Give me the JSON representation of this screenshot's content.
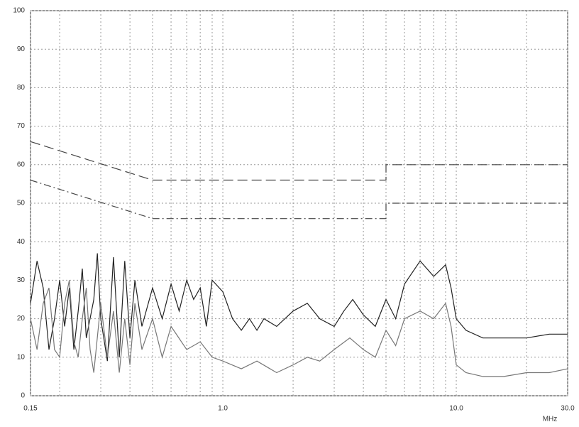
{
  "chart_data": {
    "type": "line",
    "x_label": "MHz",
    "xscale": "log",
    "grid": true,
    "xlim": [
      0.15,
      30
    ],
    "ylim": [
      0,
      100
    ],
    "xticks": [
      {
        "value": 0.15,
        "label": "0.15"
      },
      {
        "value": 1,
        "label": "1.0"
      },
      {
        "value": 10,
        "label": "10.0"
      },
      {
        "value": 30,
        "label": "30.0"
      }
    ],
    "xminorticks": [
      0.2,
      0.3,
      0.4,
      0.5,
      0.6,
      0.7,
      0.8,
      0.9,
      2,
      3,
      4,
      5,
      6,
      7,
      8,
      9,
      20
    ],
    "yticks": [
      0,
      10,
      20,
      30,
      40,
      50,
      60,
      70,
      80,
      90,
      100
    ],
    "series": [
      {
        "color": "#444444",
        "dash": "14 6",
        "x": [
          0.15,
          0.5,
          5,
          5,
          30
        ],
        "values": [
          66,
          56,
          56,
          60,
          60
        ]
      },
      {
        "color": "#444444",
        "dash": "10 4 2 4",
        "x": [
          0.15,
          0.5,
          5,
          5,
          30
        ],
        "values": [
          56,
          46,
          46,
          50,
          50
        ]
      },
      {
        "color": "#222222",
        "x": [
          0.15,
          0.16,
          0.17,
          0.18,
          0.19,
          0.2,
          0.21,
          0.22,
          0.23,
          0.24,
          0.25,
          0.26,
          0.28,
          0.29,
          0.3,
          0.32,
          0.34,
          0.36,
          0.38,
          0.4,
          0.42,
          0.45,
          0.5,
          0.55,
          0.6,
          0.65,
          0.7,
          0.75,
          0.8,
          0.85,
          0.9,
          1.0,
          1.1,
          1.2,
          1.3,
          1.4,
          1.5,
          1.7,
          2.0,
          2.3,
          2.6,
          3.0,
          3.3,
          3.6,
          4.0,
          4.5,
          5.0,
          5.5,
          6.0,
          7.0,
          8.0,
          9.0,
          9.5,
          10.0,
          11,
          13,
          16,
          20,
          25,
          30
        ],
        "values": [
          24,
          35,
          28,
          12,
          20,
          30,
          18,
          28,
          12,
          22,
          33,
          15,
          25,
          37,
          20,
          9,
          36,
          10,
          35,
          15,
          30,
          18,
          28,
          20,
          29,
          22,
          30,
          25,
          28,
          18,
          30,
          27,
          20,
          17,
          20,
          17,
          20,
          18,
          22,
          24,
          20,
          18,
          22,
          25,
          21,
          18,
          25,
          20,
          29,
          35,
          31,
          34,
          28,
          20,
          17,
          15,
          15,
          15,
          16,
          16
        ]
      },
      {
        "color": "#777777",
        "x": [
          0.15,
          0.16,
          0.17,
          0.18,
          0.19,
          0.2,
          0.21,
          0.22,
          0.23,
          0.24,
          0.25,
          0.26,
          0.27,
          0.28,
          0.3,
          0.32,
          0.34,
          0.36,
          0.38,
          0.4,
          0.42,
          0.45,
          0.5,
          0.55,
          0.6,
          0.7,
          0.8,
          0.9,
          1.0,
          1.2,
          1.4,
          1.7,
          2.0,
          2.3,
          2.6,
          3.0,
          3.5,
          4.0,
          4.5,
          5.0,
          5.5,
          6.0,
          7.0,
          8.0,
          9.0,
          9.5,
          10.0,
          11,
          13,
          16,
          20,
          25,
          30
        ],
        "values": [
          20,
          12,
          24,
          28,
          12,
          10,
          24,
          30,
          14,
          10,
          20,
          28,
          12,
          6,
          24,
          10,
          22,
          6,
          20,
          8,
          24,
          12,
          20,
          10,
          18,
          12,
          14,
          10,
          9,
          7,
          9,
          6,
          8,
          10,
          9,
          12,
          15,
          12,
          10,
          17,
          13,
          20,
          22,
          20,
          24,
          18,
          8,
          6,
          5,
          5,
          6,
          6,
          7
        ]
      }
    ]
  }
}
